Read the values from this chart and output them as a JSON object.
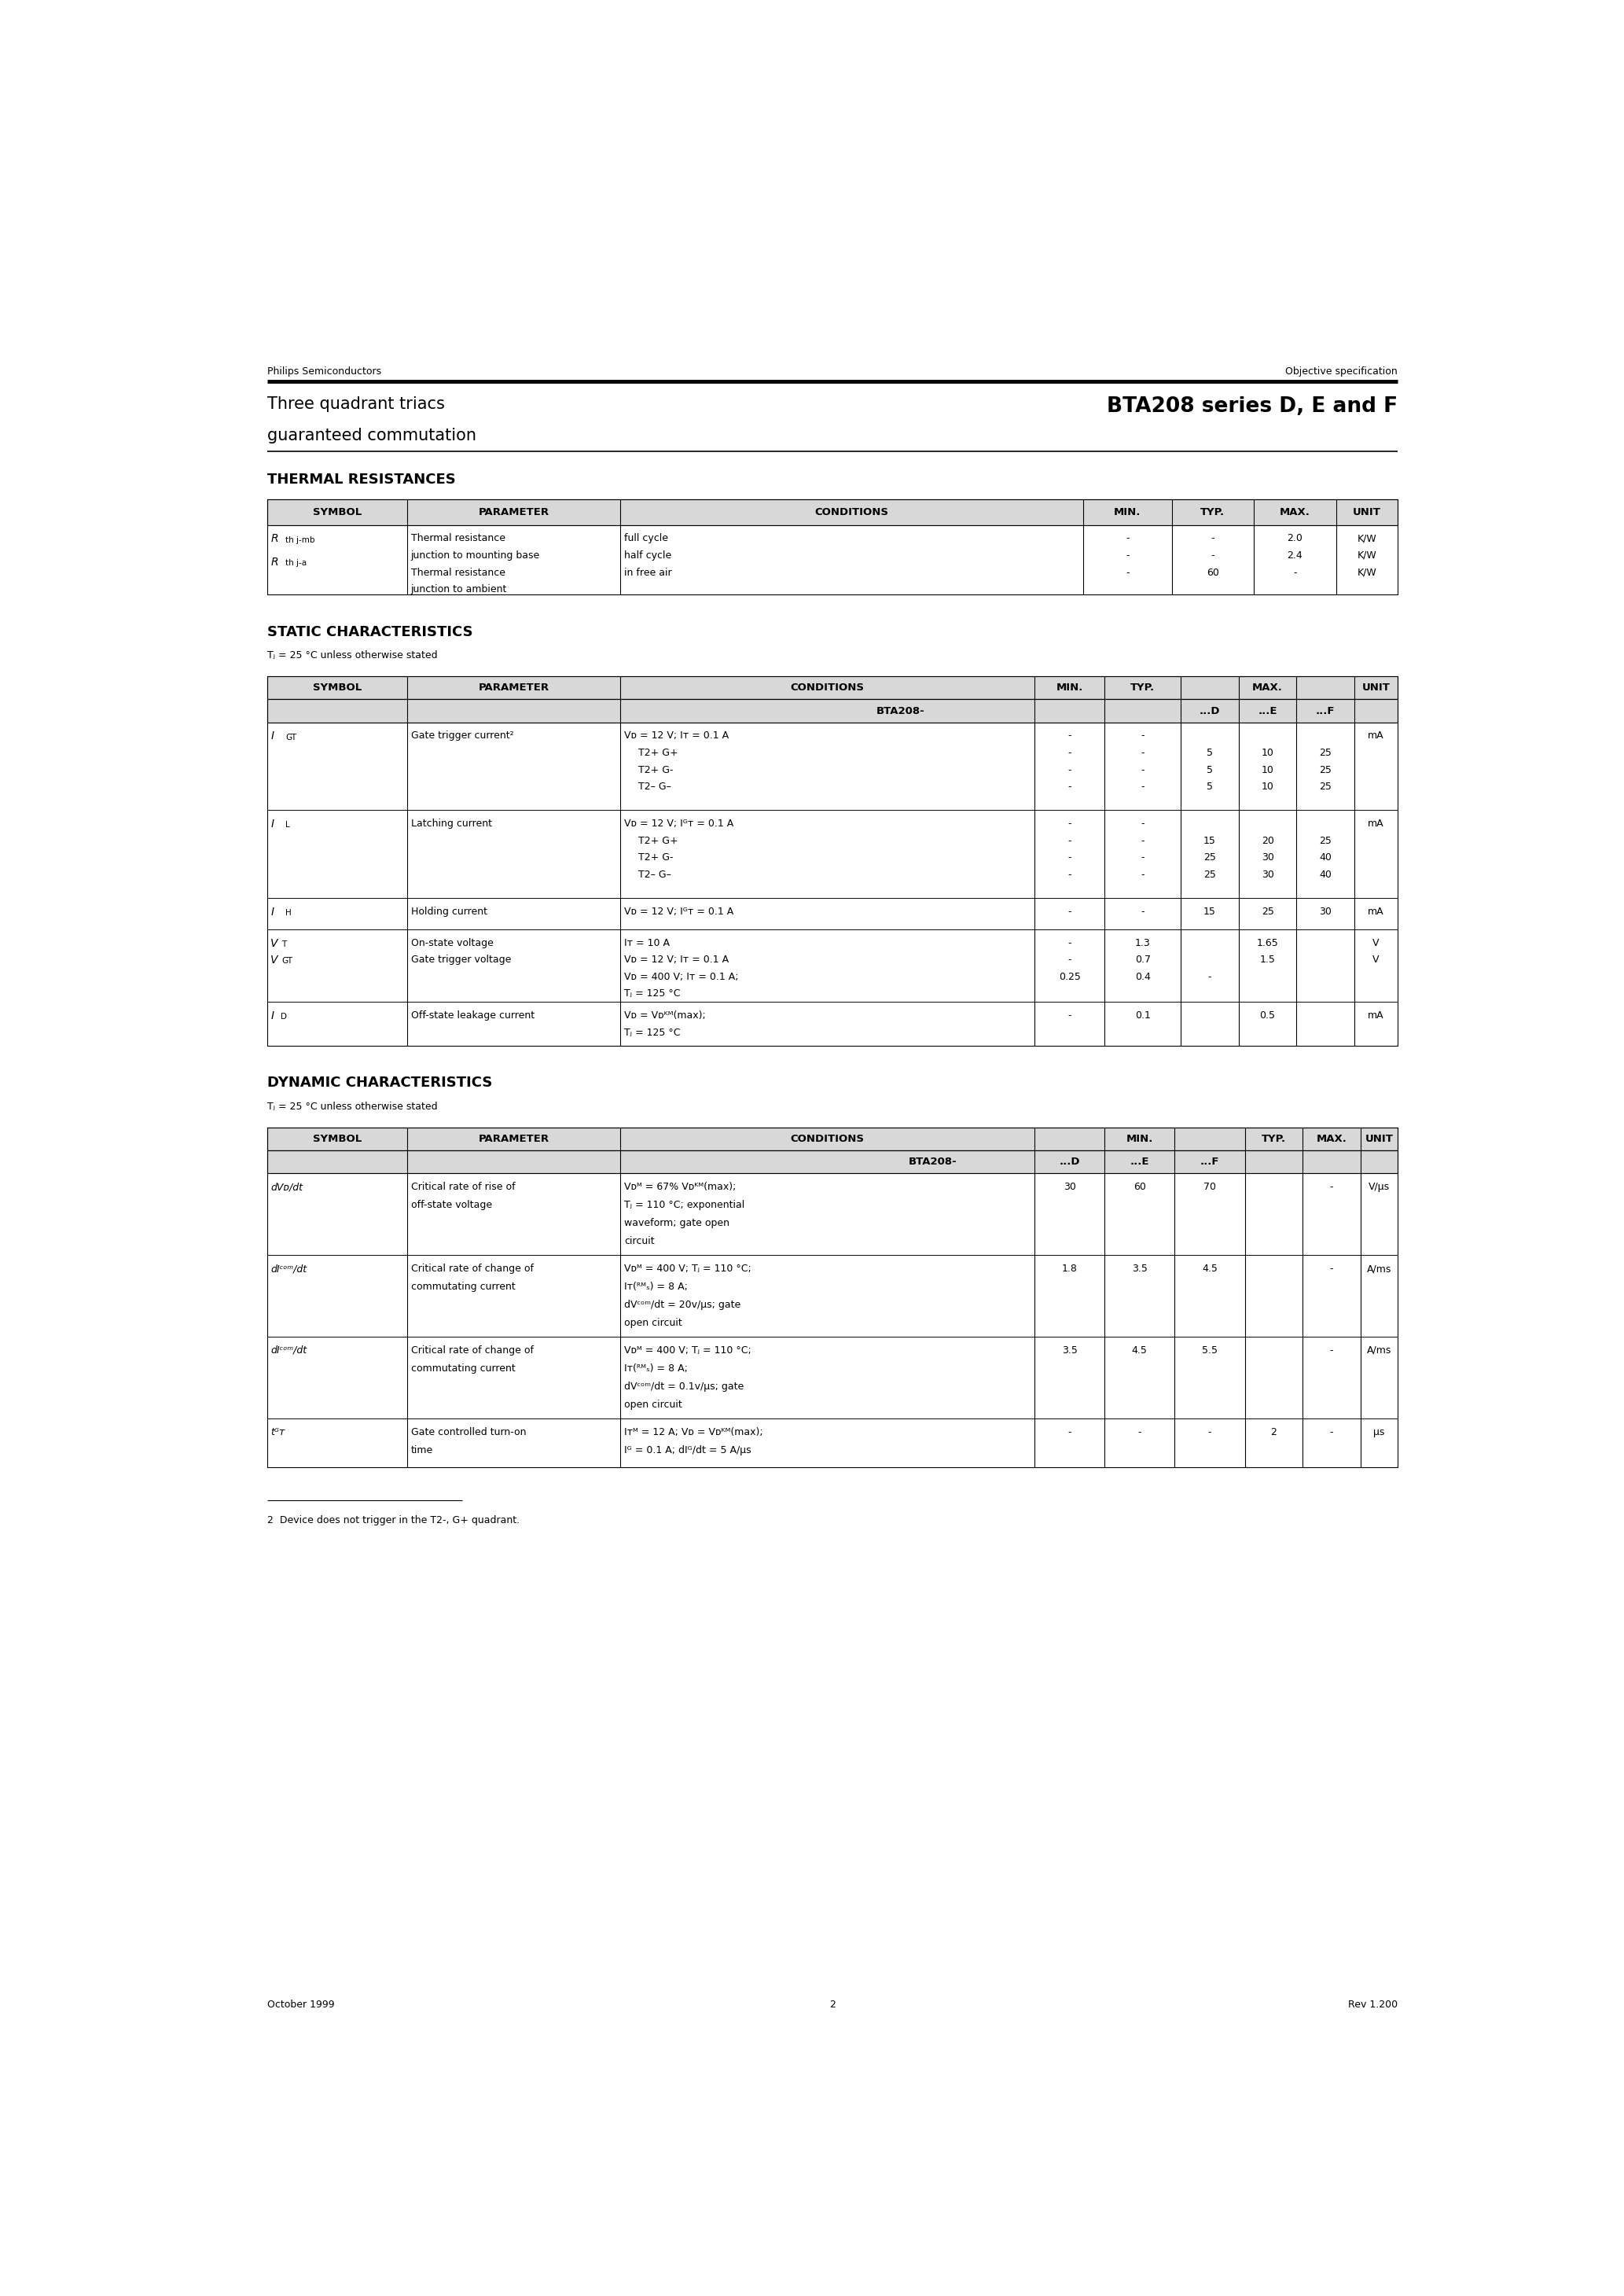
{
  "page_width": 20.66,
  "page_height": 29.2,
  "bg_color": "#ffffff",
  "header_left": "Philips Semiconductors",
  "header_right": "Objective specification",
  "title_left1": "Three quadrant triacs",
  "title_left2": "guaranteed commutation",
  "title_right": "BTA208 series D, E and F",
  "footer_left": "October 1999",
  "footer_center": "2",
  "footer_right": "Rev 1.200",
  "footnote": "2  Device does not trigger in the T2-, G+ quadrant.",
  "section1_title": "THERMAL RESISTANCES",
  "section2_title": "STATIC CHARACTERISTICS",
  "section2_sub": "Tⱼ = 25 °C unless otherwise stated",
  "section3_title": "DYNAMIC CHARACTERISTICS",
  "section3_sub": "Tⱼ = 25 °C unless otherwise stated"
}
